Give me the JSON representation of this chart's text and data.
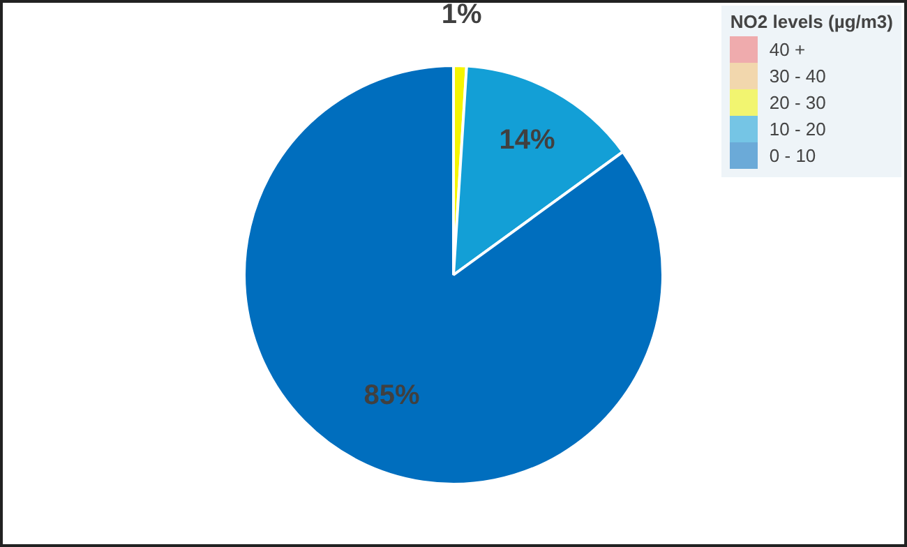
{
  "chart_data": {
    "type": "pie",
    "legend_title": "NO2 levels (µg/m3)",
    "categories": [
      "40 +",
      "30 - 40",
      "20 - 30",
      "10 - 20",
      "0 - 10"
    ],
    "values": [
      0,
      0,
      1,
      14,
      85
    ],
    "colors": [
      "#f07070",
      "#f5c070",
      "#f5f500",
      "#139fd6",
      "#006ebe"
    ],
    "value_labels": [
      null,
      null,
      "1%",
      "14%",
      "85%"
    ],
    "legend": "top right"
  }
}
